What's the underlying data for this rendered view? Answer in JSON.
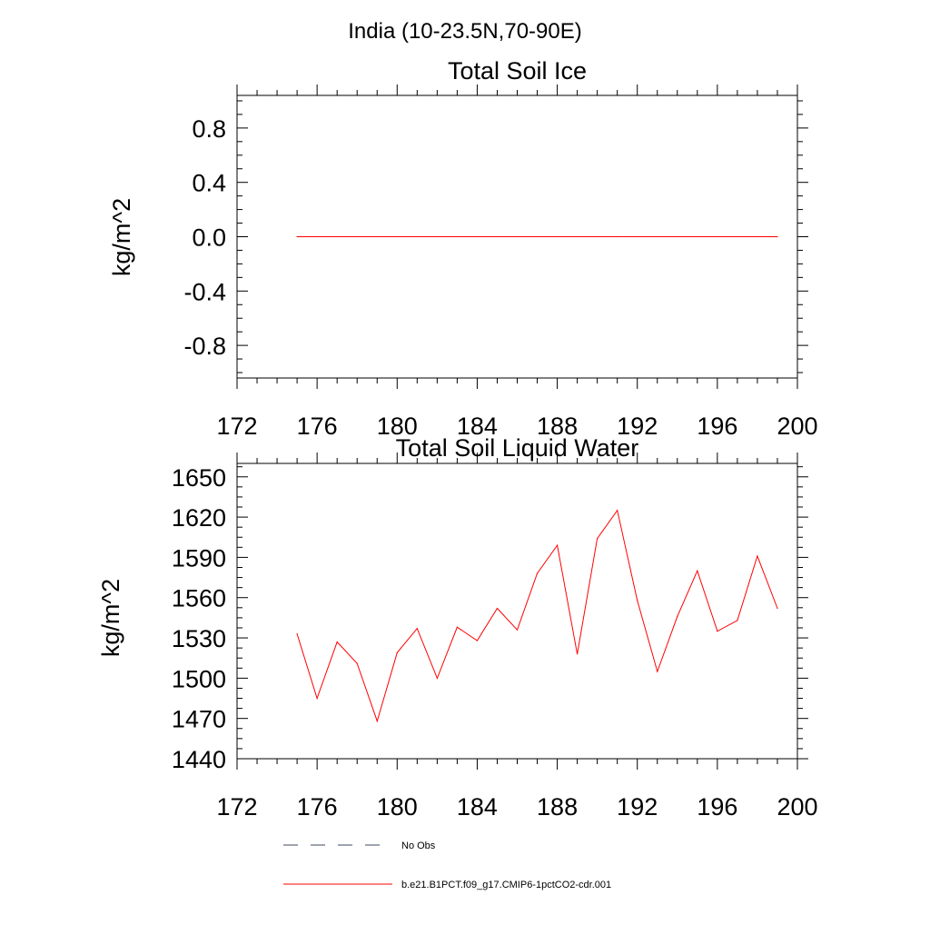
{
  "figure": {
    "suptitle": "India (10-23.5N,70-90E)"
  },
  "legend": {
    "placement": "bottom-center",
    "entries": [
      {
        "label": "No Obs",
        "style": "dashed",
        "color": "#3d4a5e"
      },
      {
        "label": "b.e21.B1PCT.f09_g17.CMIP6-1pctCO2-cdr.001",
        "style": "solid",
        "color": "#ff0000"
      }
    ]
  },
  "chart_data": [
    {
      "type": "line",
      "title": "Total Soil Ice",
      "xlabel": "",
      "ylabel": "kg/m^2",
      "xlim": [
        172,
        200
      ],
      "ylim": [
        -1.04,
        1.04
      ],
      "xticks": [
        172,
        176,
        180,
        184,
        188,
        192,
        196,
        200
      ],
      "xtick_labels": [
        "172",
        "176",
        "180",
        "184",
        "188",
        "192",
        "196",
        "200"
      ],
      "yticks": [
        -0.8,
        -0.4,
        0.0,
        0.4,
        0.8
      ],
      "ytick_labels": [
        "-0.8",
        "-0.4",
        "0.0",
        "0.4",
        "0.8"
      ],
      "grid": false,
      "series": [
        {
          "color": "#ff0000",
          "x": [
            175,
            176,
            177,
            178,
            179,
            180,
            181,
            182,
            183,
            184,
            185,
            186,
            187,
            188,
            189,
            190,
            191,
            192,
            193,
            194,
            195,
            196,
            197,
            198,
            199
          ],
          "y": [
            0,
            0,
            0,
            0,
            0,
            0,
            0,
            0,
            0,
            0,
            0,
            0,
            0,
            0,
            0,
            0,
            0,
            0,
            0,
            0,
            0,
            0,
            0,
            0,
            0
          ]
        }
      ]
    },
    {
      "type": "line",
      "title": "Total Soil Liquid Water",
      "xlabel": "",
      "ylabel": "kg/m^2",
      "xlim": [
        172,
        200
      ],
      "ylim": [
        1440,
        1660
      ],
      "xticks": [
        172,
        176,
        180,
        184,
        188,
        192,
        196,
        200
      ],
      "xtick_labels": [
        "172",
        "176",
        "180",
        "184",
        "188",
        "192",
        "196",
        "200"
      ],
      "yticks": [
        1440,
        1470,
        1500,
        1530,
        1560,
        1590,
        1620,
        1650
      ],
      "ytick_labels": [
        "1440",
        "1470",
        "1500",
        "1530",
        "1560",
        "1590",
        "1620",
        "1650"
      ],
      "grid": false,
      "series": [
        {
          "color": "#ff0000",
          "x": [
            175,
            176,
            177,
            178,
            179,
            180,
            181,
            182,
            183,
            184,
            185,
            186,
            187,
            188,
            189,
            190,
            191,
            192,
            193,
            194,
            195,
            196,
            197,
            198,
            199
          ],
          "y": [
            1533,
            1485,
            1527,
            1511,
            1468,
            1519,
            1537,
            1500,
            1538,
            1528,
            1552,
            1536,
            1578,
            1599,
            1518,
            1604,
            1625,
            1558,
            1505,
            1546,
            1580,
            1535,
            1543,
            1591,
            1552
          ]
        }
      ]
    }
  ]
}
